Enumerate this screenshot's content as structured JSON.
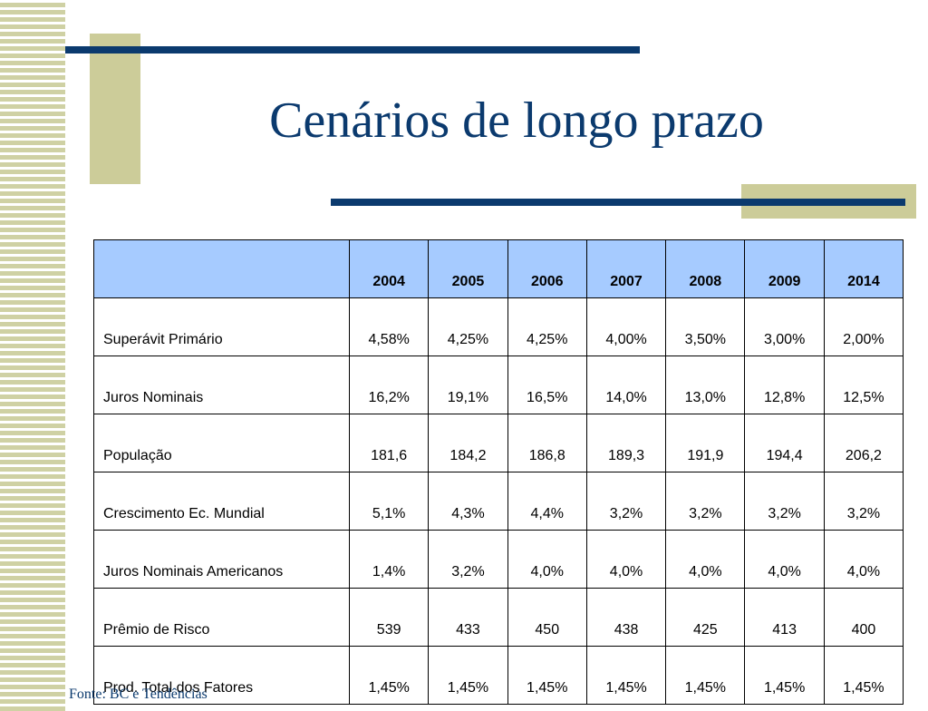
{
  "slide": {
    "title": "Cenários de longo prazo",
    "source": "Fonte: BC e Tendências"
  },
  "table": {
    "headers": [
      "",
      "2004",
      "2005",
      "2006",
      "2007",
      "2008",
      "2009",
      "2014"
    ],
    "rows": [
      {
        "label": "Superávit Primário",
        "values": [
          "4,58%",
          "4,25%",
          "4,25%",
          "4,00%",
          "3,50%",
          "3,00%",
          "2,00%"
        ]
      },
      {
        "label": "Juros Nominais",
        "values": [
          "16,2%",
          "19,1%",
          "16,5%",
          "14,0%",
          "13,0%",
          "12,8%",
          "12,5%"
        ]
      },
      {
        "label": "População",
        "values": [
          "181,6",
          "184,2",
          "186,8",
          "189,3",
          "191,9",
          "194,4",
          "206,2"
        ]
      },
      {
        "label": "Crescimento Ec. Mundial",
        "values": [
          "5,1%",
          "4,3%",
          "4,4%",
          "3,2%",
          "3,2%",
          "3,2%",
          "3,2%"
        ]
      },
      {
        "label": "Juros Nominais Americanos",
        "values": [
          "1,4%",
          "3,2%",
          "4,0%",
          "4,0%",
          "4,0%",
          "4,0%",
          "4,0%"
        ]
      },
      {
        "label": "Prêmio de Risco",
        "values": [
          "539",
          "433",
          "450",
          "438",
          "425",
          "413",
          "400"
        ]
      },
      {
        "label": "Prod. Total dos Fatores",
        "values": [
          "1,45%",
          "1,45%",
          "1,45%",
          "1,45%",
          "1,45%",
          "1,45%",
          "1,45%"
        ]
      }
    ]
  },
  "colors": {
    "title": "#0b3a6e",
    "accent_navy": "#0b3a6e",
    "accent_olive": "#cccc99",
    "header_fill": "#a6cbff"
  }
}
